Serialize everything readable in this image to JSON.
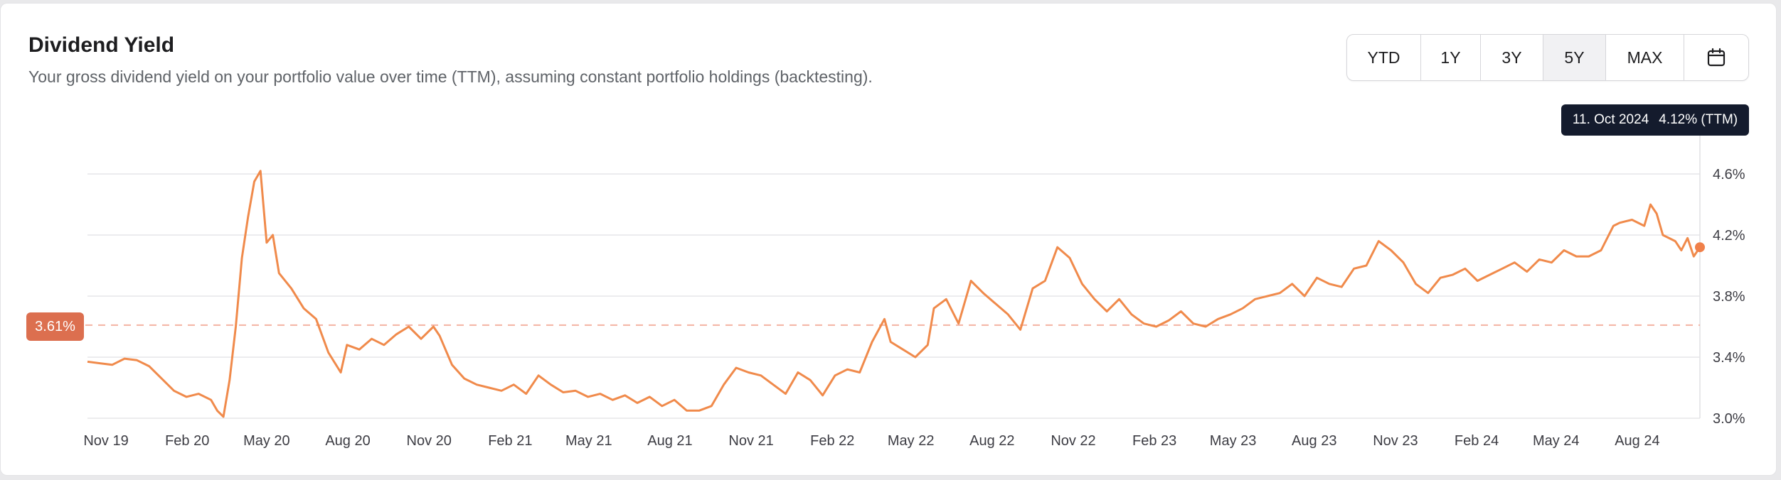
{
  "header": {
    "title": "Dividend Yield",
    "subtitle": "Your gross dividend yield on your portfolio value over time (TTM), assuming constant portfolio holdings (backtesting)."
  },
  "range_buttons": [
    {
      "label": "YTD",
      "active": false
    },
    {
      "label": "1Y",
      "active": false
    },
    {
      "label": "3Y",
      "active": false
    },
    {
      "label": "5Y",
      "active": true
    },
    {
      "label": "MAX",
      "active": false
    }
  ],
  "calendar_icon": "calendar-icon",
  "tooltip": {
    "date": "11. Oct 2024",
    "value": "4.12% (TTM)"
  },
  "average_badge": "3.61%",
  "colors": {
    "line": "#f08a4b",
    "average": "#dc6f4f",
    "tooltip_bg": "#141b2d",
    "grid": "#e6e6e9"
  },
  "chart_data": {
    "type": "line",
    "title": "Dividend Yield",
    "x_start": "2019-10-11",
    "x_end": "2024-10-11",
    "y_range": [
      3.0,
      4.6
    ],
    "y_ticks": [
      "3.0%",
      "3.4%",
      "3.8%",
      "4.2%",
      "4.6%"
    ],
    "y_tick_values": [
      3.0,
      3.4,
      3.8,
      4.2,
      4.6
    ],
    "x_ticks": [
      "Nov 19",
      "Feb 20",
      "May 20",
      "Aug 20",
      "Nov 20",
      "Feb 21",
      "May 21",
      "Aug 21",
      "Nov 21",
      "Feb 22",
      "May 22",
      "Aug 22",
      "Nov 22",
      "Feb 23",
      "May 23",
      "Aug 23",
      "Nov 23",
      "Feb 24",
      "May 24",
      "Aug 24"
    ],
    "x_tick_dates": [
      "2019-11-01",
      "2020-02-01",
      "2020-05-01",
      "2020-08-01",
      "2020-11-01",
      "2021-02-01",
      "2021-05-01",
      "2021-08-01",
      "2021-11-01",
      "2022-02-01",
      "2022-05-01",
      "2022-08-01",
      "2022-11-01",
      "2023-02-01",
      "2023-05-01",
      "2023-08-01",
      "2023-11-01",
      "2024-02-01",
      "2024-05-01",
      "2024-08-01"
    ],
    "average": 3.61,
    "grid": true,
    "series": [
      {
        "name": "Dividend Yield (TTM)",
        "points": [
          [
            "2019-10-11",
            3.37
          ],
          [
            "2019-10-25",
            3.36
          ],
          [
            "2019-11-08",
            3.35
          ],
          [
            "2019-11-22",
            3.39
          ],
          [
            "2019-12-06",
            3.38
          ],
          [
            "2019-12-20",
            3.34
          ],
          [
            "2020-01-03",
            3.26
          ],
          [
            "2020-01-17",
            3.18
          ],
          [
            "2020-01-31",
            3.14
          ],
          [
            "2020-02-14",
            3.16
          ],
          [
            "2020-02-28",
            3.12
          ],
          [
            "2020-03-06",
            3.05
          ],
          [
            "2020-03-13",
            3.01
          ],
          [
            "2020-03-20",
            3.25
          ],
          [
            "2020-03-27",
            3.6
          ],
          [
            "2020-04-03",
            4.05
          ],
          [
            "2020-04-10",
            4.32
          ],
          [
            "2020-04-17",
            4.55
          ],
          [
            "2020-04-24",
            4.62
          ],
          [
            "2020-05-01",
            4.15
          ],
          [
            "2020-05-08",
            4.2
          ],
          [
            "2020-05-15",
            3.95
          ],
          [
            "2020-05-29",
            3.85
          ],
          [
            "2020-06-12",
            3.72
          ],
          [
            "2020-06-26",
            3.65
          ],
          [
            "2020-07-10",
            3.43
          ],
          [
            "2020-07-24",
            3.3
          ],
          [
            "2020-07-31",
            3.48
          ],
          [
            "2020-08-14",
            3.45
          ],
          [
            "2020-08-28",
            3.52
          ],
          [
            "2020-09-11",
            3.48
          ],
          [
            "2020-09-25",
            3.55
          ],
          [
            "2020-10-09",
            3.6
          ],
          [
            "2020-10-23",
            3.52
          ],
          [
            "2020-11-06",
            3.6
          ],
          [
            "2020-11-13",
            3.54
          ],
          [
            "2020-11-27",
            3.35
          ],
          [
            "2020-12-11",
            3.26
          ],
          [
            "2020-12-25",
            3.22
          ],
          [
            "2021-01-08",
            3.2
          ],
          [
            "2021-01-22",
            3.18
          ],
          [
            "2021-02-05",
            3.22
          ],
          [
            "2021-02-19",
            3.16
          ],
          [
            "2021-03-05",
            3.28
          ],
          [
            "2021-03-19",
            3.22
          ],
          [
            "2021-04-02",
            3.17
          ],
          [
            "2021-04-16",
            3.18
          ],
          [
            "2021-04-30",
            3.14
          ],
          [
            "2021-05-14",
            3.16
          ],
          [
            "2021-05-28",
            3.12
          ],
          [
            "2021-06-11",
            3.15
          ],
          [
            "2021-06-25",
            3.1
          ],
          [
            "2021-07-09",
            3.14
          ],
          [
            "2021-07-23",
            3.08
          ],
          [
            "2021-08-06",
            3.12
          ],
          [
            "2021-08-20",
            3.05
          ],
          [
            "2021-09-03",
            3.05
          ],
          [
            "2021-09-17",
            3.08
          ],
          [
            "2021-10-01",
            3.22
          ],
          [
            "2021-10-15",
            3.33
          ],
          [
            "2021-10-29",
            3.3
          ],
          [
            "2021-11-12",
            3.28
          ],
          [
            "2021-11-26",
            3.22
          ],
          [
            "2021-12-10",
            3.16
          ],
          [
            "2021-12-24",
            3.3
          ],
          [
            "2022-01-07",
            3.25
          ],
          [
            "2022-01-21",
            3.15
          ],
          [
            "2022-02-04",
            3.28
          ],
          [
            "2022-02-18",
            3.32
          ],
          [
            "2022-03-04",
            3.3
          ],
          [
            "2022-03-18",
            3.5
          ],
          [
            "2022-04-01",
            3.65
          ],
          [
            "2022-04-08",
            3.5
          ],
          [
            "2022-04-22",
            3.45
          ],
          [
            "2022-05-06",
            3.4
          ],
          [
            "2022-05-20",
            3.48
          ],
          [
            "2022-05-27",
            3.72
          ],
          [
            "2022-06-10",
            3.78
          ],
          [
            "2022-06-24",
            3.62
          ],
          [
            "2022-07-08",
            3.9
          ],
          [
            "2022-07-22",
            3.82
          ],
          [
            "2022-08-05",
            3.75
          ],
          [
            "2022-08-19",
            3.68
          ],
          [
            "2022-09-02",
            3.58
          ],
          [
            "2022-09-16",
            3.85
          ],
          [
            "2022-09-30",
            3.9
          ],
          [
            "2022-10-14",
            4.12
          ],
          [
            "2022-10-28",
            4.05
          ],
          [
            "2022-11-11",
            3.88
          ],
          [
            "2022-11-25",
            3.78
          ],
          [
            "2022-12-09",
            3.7
          ],
          [
            "2022-12-23",
            3.78
          ],
          [
            "2023-01-06",
            3.68
          ],
          [
            "2023-01-20",
            3.62
          ],
          [
            "2023-02-03",
            3.6
          ],
          [
            "2023-02-17",
            3.64
          ],
          [
            "2023-03-03",
            3.7
          ],
          [
            "2023-03-17",
            3.62
          ],
          [
            "2023-03-31",
            3.6
          ],
          [
            "2023-04-14",
            3.65
          ],
          [
            "2023-04-28",
            3.68
          ],
          [
            "2023-05-12",
            3.72
          ],
          [
            "2023-05-26",
            3.78
          ],
          [
            "2023-06-09",
            3.8
          ],
          [
            "2023-06-23",
            3.82
          ],
          [
            "2023-07-07",
            3.88
          ],
          [
            "2023-07-21",
            3.8
          ],
          [
            "2023-08-04",
            3.92
          ],
          [
            "2023-08-18",
            3.88
          ],
          [
            "2023-09-01",
            3.86
          ],
          [
            "2023-09-15",
            3.98
          ],
          [
            "2023-09-29",
            4.0
          ],
          [
            "2023-10-13",
            4.16
          ],
          [
            "2023-10-27",
            4.1
          ],
          [
            "2023-11-10",
            4.02
          ],
          [
            "2023-11-24",
            3.88
          ],
          [
            "2023-12-08",
            3.82
          ],
          [
            "2023-12-22",
            3.92
          ],
          [
            "2024-01-05",
            3.94
          ],
          [
            "2024-01-19",
            3.98
          ],
          [
            "2024-02-02",
            3.9
          ],
          [
            "2024-02-16",
            3.94
          ],
          [
            "2024-03-01",
            3.98
          ],
          [
            "2024-03-15",
            4.02
          ],
          [
            "2024-03-29",
            3.96
          ],
          [
            "2024-04-12",
            4.04
          ],
          [
            "2024-04-26",
            4.02
          ],
          [
            "2024-05-10",
            4.1
          ],
          [
            "2024-05-24",
            4.06
          ],
          [
            "2024-06-07",
            4.06
          ],
          [
            "2024-06-21",
            4.1
          ],
          [
            "2024-07-05",
            4.26
          ],
          [
            "2024-07-12",
            4.28
          ],
          [
            "2024-07-26",
            4.3
          ],
          [
            "2024-08-09",
            4.26
          ],
          [
            "2024-08-16",
            4.4
          ],
          [
            "2024-08-23",
            4.34
          ],
          [
            "2024-08-30",
            4.2
          ],
          [
            "2024-09-13",
            4.16
          ],
          [
            "2024-09-20",
            4.1
          ],
          [
            "2024-09-27",
            4.18
          ],
          [
            "2024-10-04",
            4.06
          ],
          [
            "2024-10-11",
            4.12
          ]
        ]
      }
    ]
  }
}
